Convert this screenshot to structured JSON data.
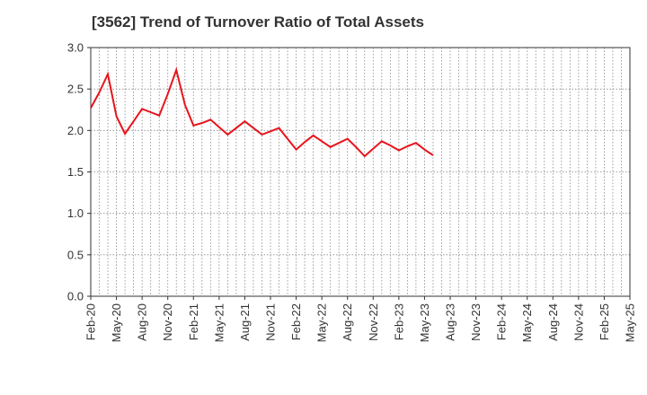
{
  "chart_data": {
    "type": "line",
    "title": "[3562]  Trend of Turnover Ratio of Total Assets",
    "xlabel": "",
    "ylabel": "",
    "x_tick_labels": [
      "Feb-20",
      "May-20",
      "Aug-20",
      "Nov-20",
      "Feb-21",
      "May-21",
      "Aug-21",
      "Nov-21",
      "Feb-22",
      "May-22",
      "Aug-22",
      "Nov-22",
      "Feb-23",
      "May-23",
      "Aug-23",
      "Nov-23",
      "Feb-24",
      "May-24",
      "Aug-24",
      "Nov-24",
      "Feb-25",
      "May-25"
    ],
    "y_tick_labels": [
      "0.0",
      "0.5",
      "1.0",
      "1.5",
      "2.0",
      "2.5",
      "3.0"
    ],
    "ylim": [
      0,
      3.0
    ],
    "grid": true,
    "months_per_label": 3,
    "series": [
      {
        "color": "#e8141c",
        "values": [
          2.27,
          2.46,
          2.68,
          2.17,
          1.96,
          2.11,
          2.26,
          2.22,
          2.18,
          2.44,
          2.73,
          2.31,
          2.06,
          2.09,
          2.13,
          2.04,
          1.95,
          2.03,
          2.11,
          2.03,
          1.95,
          1.99,
          2.03,
          1.9,
          1.77,
          1.86,
          1.94,
          1.87,
          1.8,
          1.85,
          1.9,
          1.8,
          1.69,
          1.78,
          1.87,
          1.82,
          1.76,
          1.81,
          1.85,
          1.77,
          1.7
        ]
      }
    ]
  }
}
